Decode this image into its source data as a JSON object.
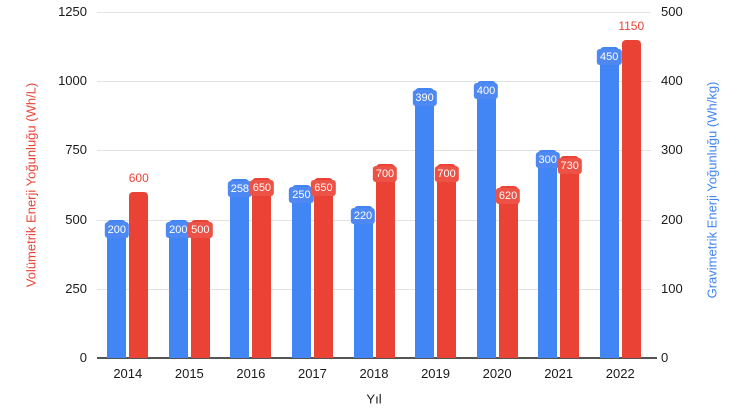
{
  "chart_data": {
    "type": "bar",
    "title": "",
    "xlabel": "Yıl",
    "ylabel_left": "Volümetrik Enerji Yoğunluğu (Wh/L)",
    "ylabel_right": "Gravimetrik Enerji Yoğunluğu (Wh/kg)",
    "categories": [
      "2014",
      "2015",
      "2016",
      "2017",
      "2018",
      "2019",
      "2020",
      "2021",
      "2022"
    ],
    "series": [
      {
        "name": "Gravimetrik Enerji Yoğunluğu (Wh/kg)",
        "axis": "right",
        "color": "#4285F4",
        "pill_color": "#4e89f3",
        "label_color": "#ffffff",
        "values": [
          200,
          200,
          258,
          250,
          220,
          390,
          400,
          300,
          450
        ],
        "label_positions": [
          "inside",
          "inside",
          "inside",
          "inside",
          "inside",
          "inside",
          "inside",
          "inside",
          "inside"
        ]
      },
      {
        "name": "Volümetrik Enerji Yoğunluğu (Wh/L)",
        "axis": "left",
        "color": "#EA4335",
        "pill_color": "#ec5245",
        "label_color": "#ffffff",
        "values": [
          600,
          500,
          650,
          650,
          700,
          700,
          620,
          730,
          1150
        ],
        "label_positions": [
          "above",
          "inside",
          "inside",
          "inside",
          "inside",
          "inside",
          "inside",
          "inside",
          "above"
        ]
      }
    ],
    "left_axis": {
      "min": 0,
      "max": 1250,
      "ticks": [
        0,
        250,
        500,
        750,
        1000,
        1250
      ],
      "title_color": "#EA4335"
    },
    "right_axis": {
      "min": 0,
      "max": 500,
      "ticks": [
        0,
        100,
        200,
        300,
        400,
        500
      ],
      "title_color": "#4285F4"
    },
    "grid": true,
    "legend": "none",
    "background": "#ffffff"
  }
}
